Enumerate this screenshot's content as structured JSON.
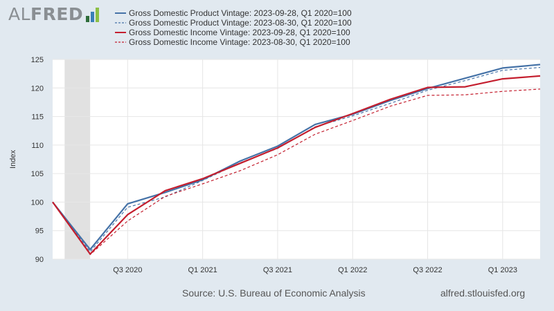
{
  "logo": {
    "text_al": "AL",
    "text_fred": "FRED"
  },
  "chart_data": {
    "type": "line",
    "ylabel": "Index",
    "ylim": [
      90,
      125
    ],
    "yticks": [
      90,
      95,
      100,
      105,
      110,
      115,
      120,
      125
    ],
    "xticks": [
      {
        "x": 2020.5,
        "label": "Q3 2020"
      },
      {
        "x": 2021.0,
        "label": "Q1 2021"
      },
      {
        "x": 2021.5,
        "label": "Q3 2021"
      },
      {
        "x": 2022.0,
        "label": "Q1 2022"
      },
      {
        "x": 2022.5,
        "label": "Q3 2022"
      },
      {
        "x": 2023.0,
        "label": "Q1 2023"
      }
    ],
    "xlim": [
      2020.0,
      2023.25
    ],
    "recession": [
      2020.08,
      2020.25
    ],
    "grid": true,
    "series": [
      {
        "name": "Gross Domestic Product Vintage: 2023-09-28, Q1 2020=100",
        "color": "#4572a7",
        "style": "solid",
        "x": [
          2020.0,
          2020.25,
          2020.5,
          2020.75,
          2021.0,
          2021.25,
          2021.5,
          2021.75,
          2022.0,
          2022.25,
          2022.5,
          2022.75,
          2023.0,
          2023.25
        ],
        "values": [
          100.0,
          91.7,
          99.7,
          101.7,
          103.9,
          107.2,
          109.8,
          113.6,
          115.4,
          117.8,
          119.9,
          121.7,
          123.5,
          124.1
        ]
      },
      {
        "name": "Gross Domestic Product Vintage: 2023-08-30, Q1 2020=100",
        "color": "#4572a7",
        "style": "dashed",
        "x": [
          2020.0,
          2020.25,
          2020.5,
          2020.75,
          2021.0,
          2021.25,
          2021.5,
          2021.75,
          2022.0,
          2022.25,
          2022.5,
          2022.75,
          2023.0,
          2023.25
        ],
        "values": [
          100.0,
          91.3,
          99.1,
          100.9,
          103.8,
          106.9,
          109.4,
          113.2,
          115.1,
          117.3,
          119.6,
          121.3,
          123.1,
          123.6
        ]
      },
      {
        "name": "Gross Domestic Income Vintage: 2023-09-28, Q1 2020=100",
        "color": "#c41e2e",
        "style": "solid",
        "x": [
          2020.0,
          2020.25,
          2020.5,
          2020.75,
          2021.0,
          2021.25,
          2021.5,
          2021.75,
          2022.0,
          2022.25,
          2022.5,
          2022.75,
          2023.0,
          2023.25
        ],
        "values": [
          100.0,
          90.9,
          97.8,
          102.0,
          104.1,
          106.8,
          109.5,
          113.1,
          115.5,
          118.0,
          120.1,
          120.2,
          121.6,
          122.1
        ]
      },
      {
        "name": "Gross Domestic Income Vintage: 2023-08-30, Q1 2020=100",
        "color": "#c41e2e",
        "style": "dashed",
        "x": [
          2020.0,
          2020.25,
          2020.5,
          2020.75,
          2021.0,
          2021.25,
          2021.5,
          2021.75,
          2022.0,
          2022.25,
          2022.5,
          2022.75,
          2023.0,
          2023.25
        ],
        "values": [
          100.0,
          90.8,
          96.7,
          101.0,
          103.2,
          105.5,
          108.3,
          111.9,
          114.3,
          116.8,
          118.7,
          118.8,
          119.4,
          119.8
        ]
      }
    ]
  },
  "footer": {
    "source": "Source: U.S. Bureau of Economic Analysis",
    "site": "alfred.stlouisfed.org"
  }
}
